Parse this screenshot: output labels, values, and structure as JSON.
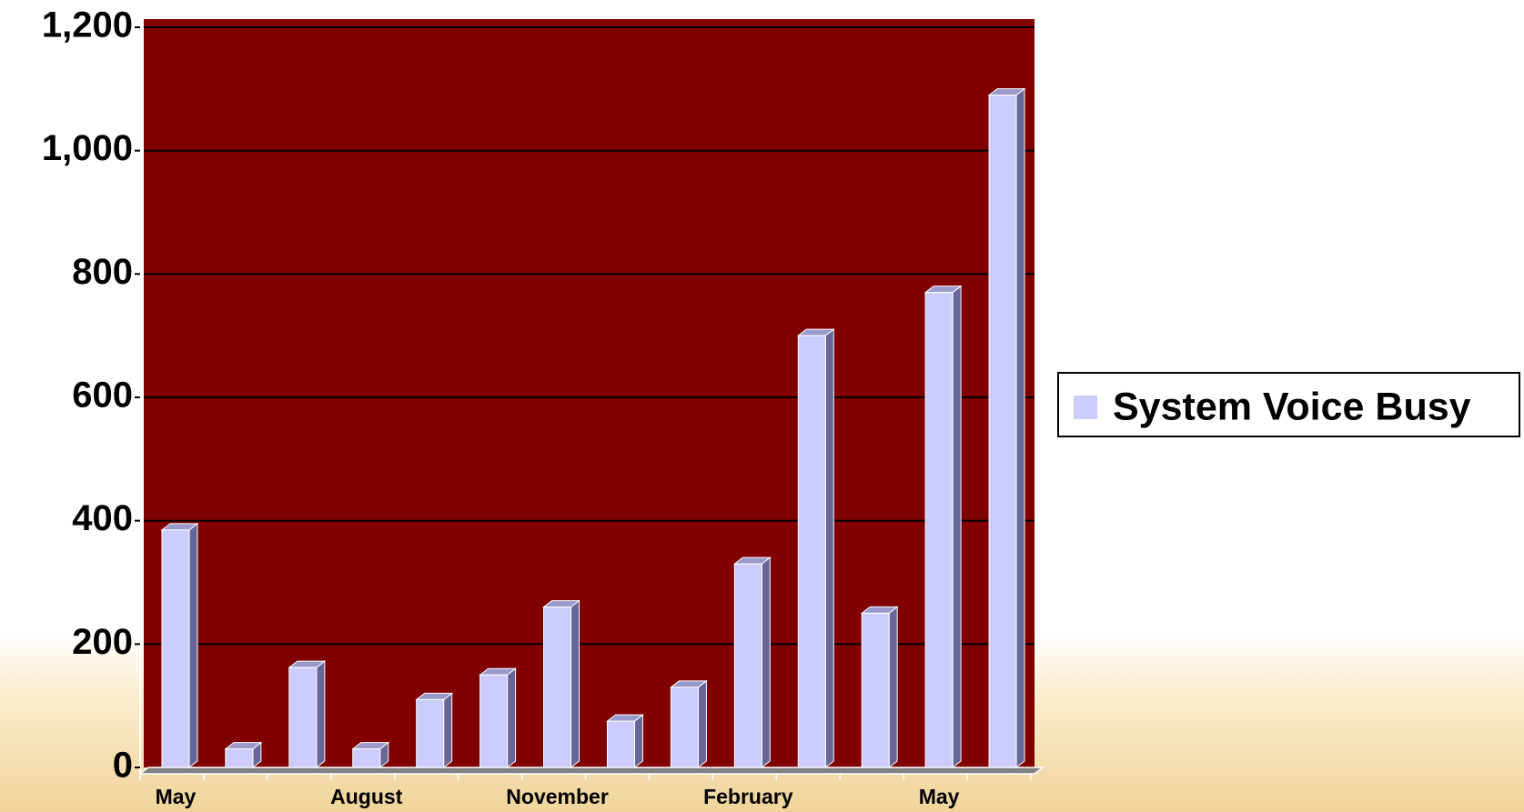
{
  "chart_data": {
    "type": "bar",
    "categories": [
      "May",
      null,
      null,
      "August",
      null,
      null,
      "November",
      null,
      null,
      "February",
      null,
      null,
      "May",
      null
    ],
    "series": [
      {
        "name": "System Voice Busy",
        "color": "#ccccff",
        "values": [
          385,
          30,
          162,
          30,
          110,
          150,
          260,
          75,
          130,
          330,
          700,
          250,
          770,
          1090
        ]
      }
    ],
    "ylim": [
      0,
      1200
    ],
    "yticks": [
      0,
      200,
      400,
      600,
      800,
      {
        "value": 1000,
        "label": "1,000"
      },
      {
        "value": 1200,
        "label": "1,200"
      }
    ],
    "grid": true,
    "legend": "right",
    "plot_background": "#800000"
  }
}
